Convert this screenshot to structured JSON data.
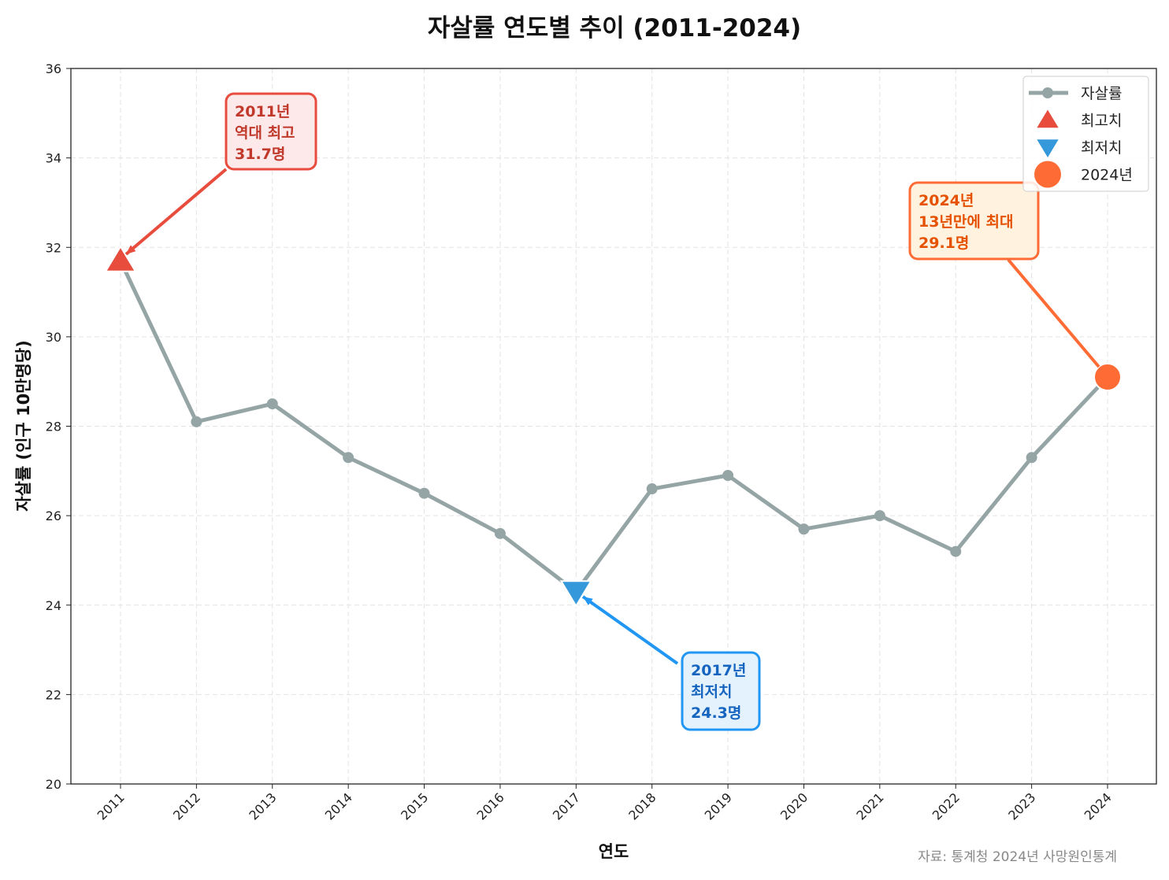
{
  "chart_data": {
    "type": "line",
    "title": "자살률 연도별 추이 (2011-2024)",
    "xlabel": "연도",
    "ylabel": "자살률 (인구 10만명당)",
    "ylim": [
      20,
      36
    ],
    "yticks": [
      20,
      22,
      24,
      26,
      28,
      30,
      32,
      34,
      36
    ],
    "grid": true,
    "legend_placement": "top-right",
    "categories": [
      "2011",
      "2012",
      "2013",
      "2014",
      "2015",
      "2016",
      "2017",
      "2018",
      "2019",
      "2020",
      "2021",
      "2022",
      "2023",
      "2024"
    ],
    "series": [
      {
        "name": "자살률",
        "color": "#95a5a6",
        "values": [
          31.7,
          28.1,
          28.5,
          27.3,
          26.5,
          25.6,
          24.3,
          26.6,
          26.9,
          25.7,
          26.0,
          25.2,
          27.3,
          29.1
        ]
      }
    ],
    "legend": [
      {
        "label": "자살률",
        "marker": "line-dot",
        "color": "#95a5a6"
      },
      {
        "label": "최고치",
        "marker": "triangle-up",
        "color": "#e74c3c"
      },
      {
        "label": "최저치",
        "marker": "triangle-down",
        "color": "#3498db"
      },
      {
        "label": "2024년",
        "marker": "circle",
        "color": "#ff6b35"
      }
    ],
    "annotations": [
      {
        "year": "2011",
        "lines": [
          "2011년",
          "역대 최고",
          "31.7명"
        ],
        "color": "#e74c3c",
        "text_color": "#c0392b",
        "fill": "#fde8ea"
      },
      {
        "year": "2017",
        "lines": [
          "2017년",
          "최저치",
          "24.3명"
        ],
        "color": "#2196f3",
        "text_color": "#1565c0",
        "fill": "#e3f2fd"
      },
      {
        "year": "2024",
        "lines": [
          "2024년",
          "13년만에 최대",
          "29.1명"
        ],
        "color": "#ff6b35",
        "text_color": "#e65100",
        "fill": "#fff3e0"
      }
    ],
    "source": "자료: 통계청 2024년 사망원인통계"
  }
}
